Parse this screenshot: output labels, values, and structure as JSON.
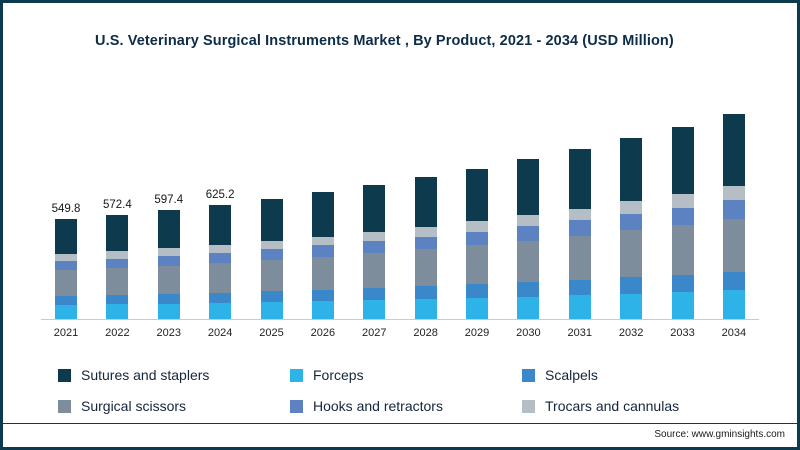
{
  "title": "U.S. Veterinary Surgical Instruments Market , By Product, 2021 - 2034 (USD Million)",
  "source": "Source: www.gminsights.com",
  "frame": {
    "border_color": "#0e3a4e",
    "axis_line_color": "#c7ccd1"
  },
  "chart_data": {
    "type": "bar",
    "stacked": true,
    "title": "U.S. Veterinary Surgical Instruments Market , By Product, 2021 - 2034 (USD Million)",
    "xlabel": "",
    "ylabel": "",
    "units": "USD Million",
    "y_axis_visible": false,
    "gridlines": false,
    "legend_position": "bottom",
    "ylim": [
      0,
      1200
    ],
    "categories": [
      "2021",
      "2022",
      "2023",
      "2024",
      "2025",
      "2026",
      "2027",
      "2028",
      "2029",
      "2030",
      "2031",
      "2032",
      "2033",
      "2034"
    ],
    "totals": [
      549.8,
      572.4,
      597.4,
      625.2,
      659.0,
      696.0,
      736.0,
      779.0,
      826.0,
      877.0,
      932.0,
      991.0,
      1055.0,
      1124.0
    ],
    "data_labels": {
      "2021": "549.8",
      "2022": "572.4",
      "2023": "597.4",
      "2024": "625.2"
    },
    "series": [
      {
        "name": "Forceps",
        "color": "#2db3e8",
        "values": [
          77.0,
          80.1,
          83.6,
          87.5,
          92.3,
          97.4,
          103.0,
          109.1,
          115.6,
          122.8,
          130.5,
          138.7,
          147.7,
          157.4
        ]
      },
      {
        "name": "Scalpels",
        "color": "#3a87c9",
        "values": [
          49.5,
          51.5,
          53.8,
          56.3,
          59.3,
          62.6,
          66.2,
          70.1,
          74.3,
          78.9,
          83.9,
          89.2,
          95.0,
          101.2
        ]
      },
      {
        "name": "Surgical scissors",
        "color": "#7e8d9c",
        "values": [
          142.9,
          148.8,
          155.3,
          162.6,
          171.3,
          181.0,
          191.4,
          202.5,
          214.8,
          228.0,
          242.3,
          257.7,
          274.3,
          292.2
        ]
      },
      {
        "name": "Hooks and retractors",
        "color": "#5d82c1",
        "values": [
          49.5,
          51.5,
          53.8,
          56.3,
          59.3,
          62.6,
          66.2,
          70.1,
          74.3,
          78.9,
          83.9,
          89.2,
          95.0,
          101.2
        ]
      },
      {
        "name": "Trocars and cannulas",
        "color": "#b5bdc5",
        "values": [
          38.5,
          40.1,
          41.8,
          43.8,
          46.1,
          48.7,
          51.5,
          54.5,
          57.8,
          61.4,
          65.2,
          69.4,
          73.9,
          78.7
        ]
      },
      {
        "name": "Sutures and staplers",
        "color": "#0e3a4e",
        "values": [
          192.4,
          200.3,
          209.1,
          218.8,
          230.7,
          243.6,
          257.6,
          272.7,
          289.1,
          307.0,
          326.2,
          346.9,
          369.3,
          393.4
        ]
      }
    ]
  },
  "legend": {
    "items": [
      {
        "label": "Sutures and staplers",
        "color": "#0e3a4e"
      },
      {
        "label": "Forceps",
        "color": "#2db3e8"
      },
      {
        "label": "Scalpels",
        "color": "#3a87c9"
      },
      {
        "label": "Surgical scissors",
        "color": "#7e8d9c"
      },
      {
        "label": "Hooks and retractors",
        "color": "#5d82c1"
      },
      {
        "label": "Trocars and cannulas",
        "color": "#b5bdc5"
      }
    ]
  }
}
